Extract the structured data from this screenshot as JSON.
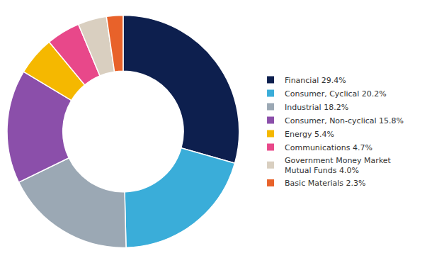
{
  "chart_data": {
    "type": "pie",
    "categories": [
      "Financial 29.4%",
      "Consumer, Cyclical 20.2%",
      "Industrial 18.2%",
      "Consumer, Non-cyclical 15.8%",
      "Energy 5.4%",
      "Communications 4.7%",
      "Government Money Market\nMutual Funds 4.0%",
      "Basic Materials 2.3%"
    ],
    "values": [
      29.4,
      20.2,
      18.2,
      15.8,
      5.4,
      4.7,
      4.0,
      2.3
    ],
    "colors": [
      "#0d1f4e",
      "#3aadd9",
      "#9ba8b4",
      "#8b4faa",
      "#f5b800",
      "#e8488a",
      "#d9cfc0",
      "#e8622a"
    ],
    "legend": "right"
  }
}
